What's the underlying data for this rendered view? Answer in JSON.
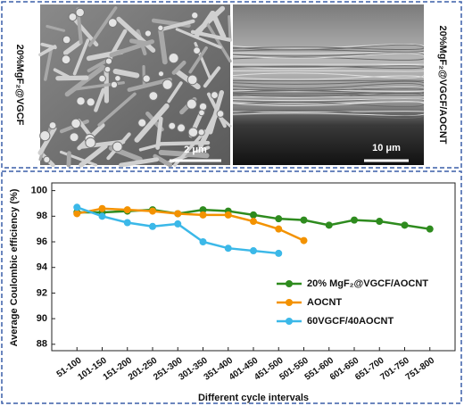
{
  "images": [
    {
      "label": "20%MgF₂@VGCF",
      "scale_bar": "2 μm"
    },
    {
      "label": "20%MgF₂@VGCF/AOCNT",
      "scale_bar": "10 μm"
    }
  ],
  "chart_data": {
    "type": "line",
    "x_label": "Different cycle intervals",
    "y_label": "Average Coulombic efficiency (%)",
    "categories": [
      "51-100",
      "101-150",
      "151-200",
      "201-250",
      "251-300",
      "301-350",
      "351-400",
      "401-450",
      "451-500",
      "501-550",
      "551-600",
      "601-650",
      "651-700",
      "701-750",
      "751-800"
    ],
    "series": [
      {
        "name": "20% MgF₂@VGCF/AOCNT",
        "color": "#2e8b1e",
        "values": [
          98.3,
          98.3,
          98.4,
          98.5,
          98.2,
          98.5,
          98.4,
          98.1,
          97.8,
          97.7,
          97.3,
          97.7,
          97.6,
          97.3,
          97.0
        ]
      },
      {
        "name": "AOCNT",
        "color": "#f39200",
        "values": [
          98.2,
          98.6,
          98.5,
          98.4,
          98.2,
          98.1,
          98.1,
          97.6,
          97.0,
          96.1,
          null,
          null,
          null,
          null,
          null
        ]
      },
      {
        "name": "60VGCF/40AOCNT",
        "color": "#3bb8e8",
        "values": [
          98.7,
          98.0,
          97.5,
          97.2,
          97.4,
          96.0,
          95.5,
          95.3,
          95.1,
          null,
          null,
          null,
          null,
          null,
          null
        ]
      }
    ],
    "ylim": [
      87.5,
      100.6
    ],
    "yticks": [
      88,
      90,
      92,
      94,
      96,
      98,
      100
    ],
    "grid": false,
    "legend": "right"
  }
}
